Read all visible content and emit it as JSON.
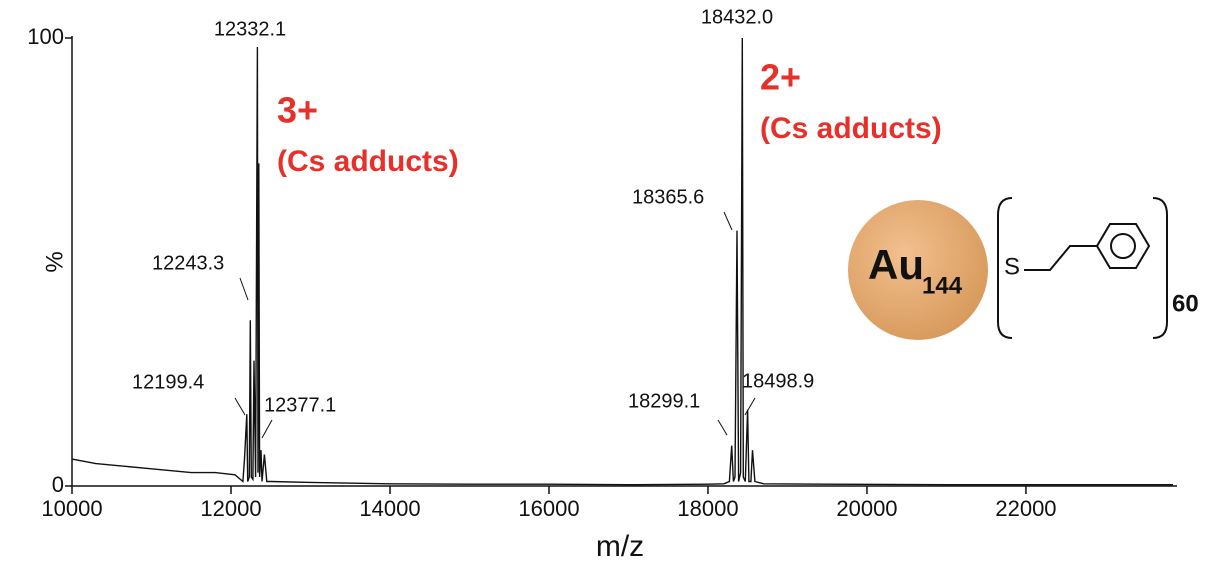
{
  "chart_data": {
    "type": "line",
    "x_label": "m/z",
    "y_label": "%",
    "color": "#111111",
    "x": [
      10000,
      10300,
      10600,
      10900,
      11200,
      11500,
      11800,
      12050,
      12150,
      12170,
      12199.4,
      12210,
      12230,
      12243.3,
      12255,
      12275,
      12290,
      12310,
      12332.1,
      12340,
      12350,
      12360,
      12377.1,
      12390,
      12420,
      12450,
      12500,
      13000,
      14000,
      15000,
      16000,
      17000,
      18000,
      18200,
      18270,
      18299.1,
      18320,
      18340,
      18365.6,
      18385,
      18410,
      18432.0,
      18445,
      18470,
      18498.9,
      18515,
      18540,
      18560,
      18590,
      18700,
      19500,
      21000,
      22500,
      23850
    ],
    "values": [
      6,
      5,
      4.5,
      4,
      3.5,
      3,
      3,
      2.5,
      1,
      6,
      16,
      1,
      2,
      37,
      2,
      1.5,
      28,
      2,
      98,
      3,
      72,
      2,
      8,
      1,
      7,
      1,
      1,
      0.8,
      0.5,
      0.4,
      0.4,
      0.3,
      0.4,
      0.5,
      1,
      9,
      1,
      2,
      57,
      1,
      3,
      100,
      2,
      1,
      17,
      1,
      1,
      8,
      1,
      0.5,
      0.4,
      0.3,
      0.3,
      0.3
    ],
    "xlim": [
      10000,
      23900
    ],
    "ylim": [
      0,
      100
    ],
    "xticks": [
      10000,
      12000,
      14000,
      16000,
      18000,
      20000,
      22000
    ],
    "yticks": [
      0,
      100
    ],
    "peak_labels": [
      {
        "x": 12332.1,
        "label": "12332.1"
      },
      {
        "x": 12243.3,
        "label": "12243.3"
      },
      {
        "x": 12199.4,
        "label": "12199.4"
      },
      {
        "x": 12377.1,
        "label": "12377.1"
      },
      {
        "x": 18432.0,
        "label": "18432.0"
      },
      {
        "x": 18365.6,
        "label": "18365.6"
      },
      {
        "x": 18299.1,
        "label": "18299.1"
      },
      {
        "x": 18498.9,
        "label": "18498.9"
      }
    ],
    "annotations": [
      "3+",
      "(Cs adducts)",
      "2+",
      "(Cs adducts)"
    ]
  },
  "structure": {
    "metal": "Au",
    "metal_count": "144",
    "atom": "S",
    "repeat": "60"
  }
}
